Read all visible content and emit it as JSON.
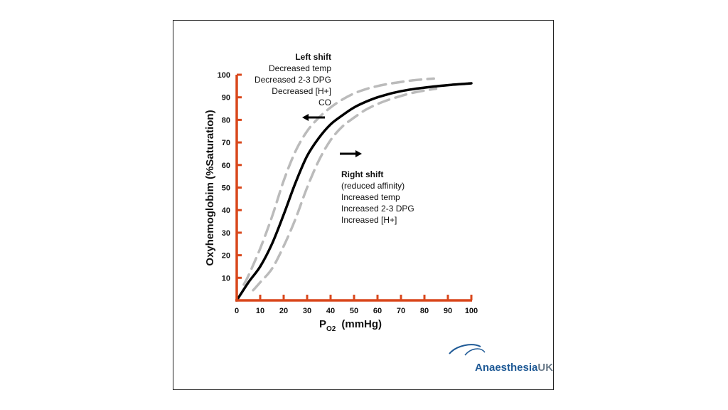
{
  "chart_data": {
    "type": "line",
    "title": "",
    "xlabel": "P",
    "xlabel_sub": "O2",
    "xlabel_unit": "(mmHg)",
    "ylabel": "Oxyhemoglobim (%Saturation)",
    "xlim": [
      0,
      100
    ],
    "ylim": [
      0,
      100
    ],
    "x_ticks": [
      "0",
      "10",
      "20",
      "30",
      "40",
      "50",
      "60",
      "70",
      "80",
      "90",
      "100"
    ],
    "y_ticks": [
      "10",
      "20",
      "30",
      "40",
      "50",
      "60",
      "70",
      "80",
      "90",
      "100"
    ],
    "axis_color": "#d9471b",
    "grid": false,
    "series": [
      {
        "style": "solid",
        "color": "#000000",
        "x": [
          0,
          5,
          10,
          15,
          20,
          25,
          30,
          35,
          40,
          45,
          50,
          55,
          60,
          65,
          70,
          75,
          80,
          85,
          90,
          95,
          100
        ],
        "y": [
          0,
          8,
          15,
          25,
          38,
          52,
          64,
          72,
          78,
          82,
          85.5,
          88,
          90,
          91.5,
          92.7,
          93.6,
          94.3,
          94.9,
          95.4,
          95.8,
          96.2
        ]
      },
      {
        "style": "dashed",
        "color": "#bbbbbb",
        "x": [
          3,
          5,
          10,
          15,
          20,
          25,
          30,
          35,
          40,
          45,
          50,
          55,
          60,
          65,
          70,
          75,
          80,
          84
        ],
        "y": [
          7,
          11,
          23,
          37,
          53,
          66,
          75,
          81,
          85.5,
          89,
          91.7,
          93.6,
          95,
          96,
          96.8,
          97.5,
          98,
          98.3
        ]
      },
      {
        "style": "dashed",
        "color": "#bbbbbb",
        "x": [
          7,
          10,
          15,
          20,
          25,
          30,
          35,
          40,
          45,
          50,
          55,
          60,
          65,
          70,
          75,
          80,
          85
        ],
        "y": [
          4.5,
          8,
          14,
          24,
          36,
          50,
          62,
          71,
          77,
          81,
          84.5,
          87,
          89,
          90.6,
          92,
          93,
          93.8
        ]
      }
    ],
    "annotations": {
      "left_shift": {
        "title": "Left shift",
        "lines": [
          "Decreased temp",
          "Decreased 2-3 DPG",
          "Decreased [H+]",
          "CO"
        ]
      },
      "right_shift": {
        "title": "Right shift",
        "lines": [
          "(reduced affinity)",
          "Increased temp",
          "Increased 2-3 DPG",
          "Increased [H+]"
        ]
      }
    }
  },
  "logo": {
    "part1": "Anaesthesia",
    "part2": "UK"
  }
}
